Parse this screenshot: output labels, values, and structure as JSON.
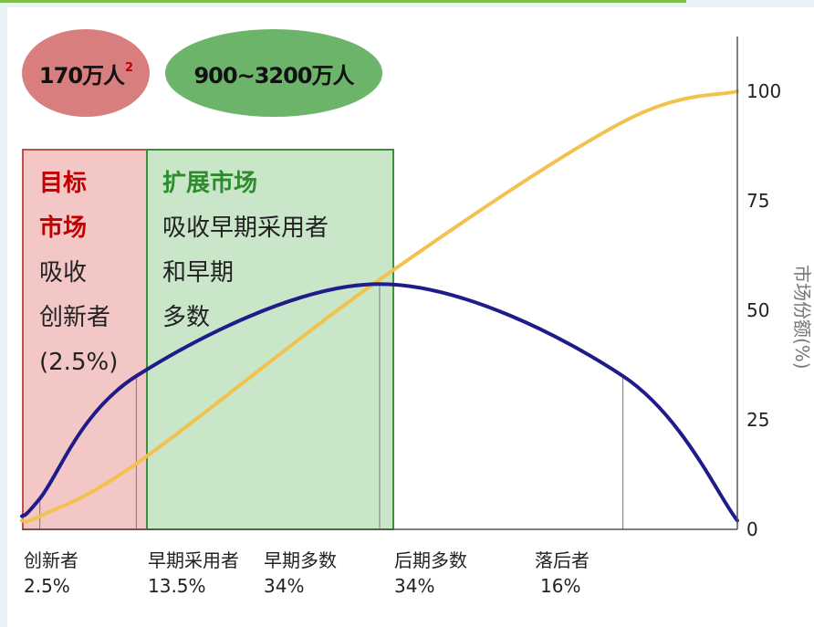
{
  "pills": {
    "target_count": "170万人",
    "target_note": "2",
    "expand_count": "900~3200万人"
  },
  "target_market": {
    "title_line1": "目标",
    "title_line2": "市场",
    "desc_line1": "吸收",
    "desc_line2": "创新者",
    "desc_line3": "(2.5%)"
  },
  "expand_market": {
    "title": "扩展市场",
    "desc_line1": "吸收早期采用者",
    "desc_line2": "和早期",
    "desc_line3": "多数"
  },
  "chart_data": {
    "type": "line",
    "ylabel": "市场份额(%)",
    "ylim": [
      0,
      100
    ],
    "yticks": [
      0,
      25,
      50,
      75,
      100
    ],
    "series": [
      {
        "role": "adoption-curve",
        "color": "#1f1c8a",
        "x": [
          0,
          2.5,
          16,
          50,
          84,
          100
        ],
        "values": [
          3,
          7,
          35,
          56,
          35,
          2
        ]
      },
      {
        "role": "cumulative-share",
        "color": "#f2c24f",
        "x": [
          0,
          2.5,
          16,
          50,
          84,
          100
        ],
        "values": [
          2,
          3,
          15,
          57,
          93,
          100
        ]
      }
    ],
    "dividers_x": [
      2.5,
      16,
      50,
      84
    ],
    "segments": [
      {
        "name": "创新者",
        "share": "2.5%"
      },
      {
        "name": "早期采用者",
        "share": "13.5%"
      },
      {
        "name": "早期多数",
        "share": "34%"
      },
      {
        "name": "后期多数",
        "share": "34%"
      },
      {
        "name": "落后者",
        "share": "16%"
      }
    ]
  }
}
